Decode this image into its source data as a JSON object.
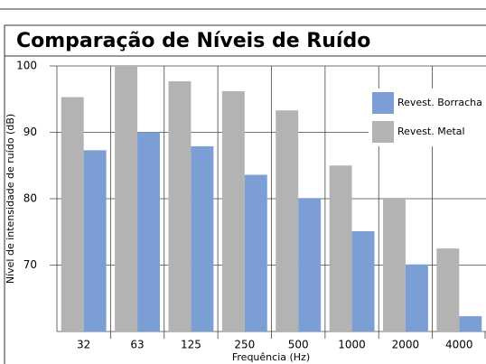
{
  "chart_data": {
    "type": "bar",
    "title": "Comparação de Níveis de Ruído",
    "x_label": "Frequência (Hz)",
    "y_label": "Nível de intensidade de ruído (dB)",
    "categories": [
      "32",
      "63",
      "125",
      "250",
      "500",
      "1000",
      "2000",
      "4000"
    ],
    "series": [
      {
        "name": "Revest. Metal",
        "color": "#b3b3b3",
        "values": [
          95.3,
          100,
          97.7,
          96.2,
          93.3,
          85,
          80,
          72.5
        ]
      },
      {
        "name": "Revest. Borracha",
        "color": "#7b9fd4",
        "values": [
          87.3,
          90,
          87.9,
          83.6,
          80.1,
          75.1,
          70.1,
          62.3
        ]
      }
    ],
    "ylim": [
      60,
      100
    ],
    "yticks": [
      70,
      80,
      90,
      100
    ],
    "grid": true,
    "legend": "upper right"
  }
}
